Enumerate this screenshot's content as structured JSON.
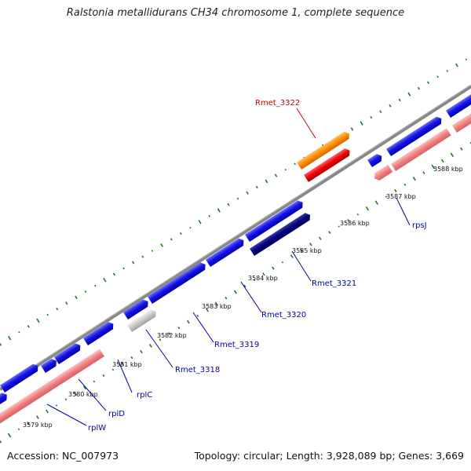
{
  "title": "Ralstonia metallidurans CH34 chromosome 1, complete sequence",
  "footer": {
    "accession": "Accession: NC_007973",
    "summary": "Topology: circular; Length: 3,928,089 bp; Genes: 3,669"
  },
  "colors": {
    "forward_cds": "#1010e0",
    "reverse_cds": "#f08080",
    "highlight_forward": "#ff8c00",
    "highlight_reverse": "#ee0000",
    "dark_cds": "#000080",
    "grey_cds": "#c8c8c8",
    "backbone": "#808080",
    "gc_ticks": "#1e7a1e",
    "highlight_label": "#cc0000",
    "label": "#0000bb"
  },
  "ticks": [
    "3579 kbp",
    "3580 kbp",
    "3581 kbp",
    "3582 kbp",
    "3583 kbp",
    "3584 kbp",
    "3585 kbp",
    "3586 kbp",
    "3587 kbp",
    "3588 kbp"
  ],
  "gene_labels": {
    "rmet_3322": "Rmet_3322",
    "rplw": "rplW",
    "rpld": "rplD",
    "rplc": "rplC",
    "rmet_3318": "Rmet_3318",
    "rmet_3319": "Rmet_3319",
    "rmet_3320": "Rmet_3320",
    "rmet_3321": "Rmet_3321",
    "rpsj": "rpsJ"
  }
}
